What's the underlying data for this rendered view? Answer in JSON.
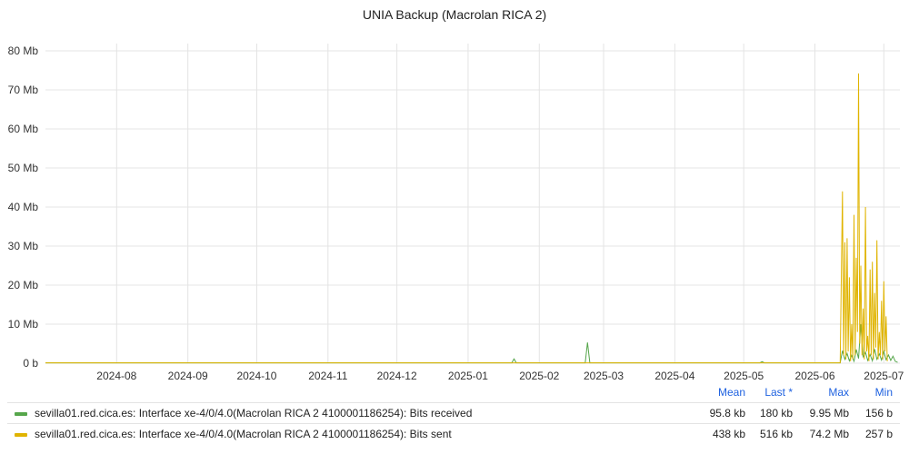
{
  "chart_data": {
    "type": "line",
    "title": "UNIA Backup (Macrolan RICA 2)",
    "y_ticks": [
      "0 b",
      "10 Mb",
      "20 Mb",
      "30 Mb",
      "40 Mb",
      "50 Mb",
      "60 Mb",
      "70 Mb",
      "80 Mb"
    ],
    "ylim": [
      0,
      80
    ],
    "x_ticks": [
      "2024-08",
      "2024-09",
      "2024-10",
      "2024-11",
      "2024-12",
      "2025-01",
      "2025-02",
      "2025-03",
      "2025-04",
      "2025-05",
      "2025-06",
      "2025-07"
    ],
    "xlim": [
      "2024-07-01",
      "2025-07-08"
    ],
    "grid": true,
    "legend_placement": "bottom",
    "series": [
      {
        "name": "sevilla01.red.cica.es: Interface xe-4/0/4.0(Macrolan RICA 2 4100001186254): Bits received",
        "color": "#56a64b",
        "points": [
          [
            "2024-07-01",
            0.1
          ],
          [
            "2025-01-20",
            0.1
          ],
          [
            "2025-01-21",
            1.1
          ],
          [
            "2025-01-22",
            0.1
          ],
          [
            "2025-02-21",
            0.1
          ],
          [
            "2025-02-22",
            5.3
          ],
          [
            "2025-02-23",
            0.1
          ],
          [
            "2025-05-08",
            0.1
          ],
          [
            "2025-05-09",
            0.4
          ],
          [
            "2025-05-10",
            0.1
          ],
          [
            "2025-06-12",
            0.1
          ],
          [
            "2025-06-13",
            3.2
          ],
          [
            "2025-06-14",
            1.0
          ],
          [
            "2025-06-15",
            2.5
          ],
          [
            "2025-06-16",
            0.6
          ],
          [
            "2025-06-17",
            2.0
          ],
          [
            "2025-06-18",
            0.5
          ],
          [
            "2025-06-19",
            3.5
          ],
          [
            "2025-06-20",
            1.2
          ],
          [
            "2025-06-21",
            9.95
          ],
          [
            "2025-06-22",
            1.5
          ],
          [
            "2025-06-23",
            2.8
          ],
          [
            "2025-06-24",
            0.7
          ],
          [
            "2025-06-25",
            2.2
          ],
          [
            "2025-06-26",
            0.6
          ],
          [
            "2025-06-27",
            3.6
          ],
          [
            "2025-06-28",
            1.0
          ],
          [
            "2025-06-29",
            2.4
          ],
          [
            "2025-06-30",
            0.8
          ],
          [
            "2025-07-01",
            3.0
          ],
          [
            "2025-07-02",
            0.9
          ],
          [
            "2025-07-03",
            2.1
          ],
          [
            "2025-07-04",
            0.7
          ],
          [
            "2025-07-05",
            1.8
          ],
          [
            "2025-07-06",
            0.5
          ],
          [
            "2025-07-07",
            0.2
          ]
        ],
        "mean": "95.8 kb",
        "last": "180 kb",
        "max": "9.95 Mb",
        "min": "156 b"
      },
      {
        "name": "sevilla01.red.cica.es: Interface xe-4/0/4.0(Macrolan RICA 2 4100001186254): Bits sent",
        "color": "#e0b400",
        "points": [
          [
            "2024-07-01",
            0.1
          ],
          [
            "2025-06-12",
            0.1
          ],
          [
            "2025-06-13",
            44.0
          ],
          [
            "2025-06-13T12",
            2.0
          ],
          [
            "2025-06-14",
            31.0
          ],
          [
            "2025-06-14T12",
            1.0
          ],
          [
            "2025-06-15",
            32.0
          ],
          [
            "2025-06-15T12",
            3.0
          ],
          [
            "2025-06-16",
            22.0
          ],
          [
            "2025-06-16T12",
            0.5
          ],
          [
            "2025-06-17",
            10.0
          ],
          [
            "2025-06-17T12",
            1.0
          ],
          [
            "2025-06-18",
            38.0
          ],
          [
            "2025-06-18T12",
            2.0
          ],
          [
            "2025-06-19",
            27.0
          ],
          [
            "2025-06-19T12",
            8.0
          ],
          [
            "2025-06-20",
            74.2
          ],
          [
            "2025-06-20T12",
            5.0
          ],
          [
            "2025-06-21",
            25.0
          ],
          [
            "2025-06-21T12",
            2.0
          ],
          [
            "2025-06-22",
            14.0
          ],
          [
            "2025-06-22T12",
            1.0
          ],
          [
            "2025-06-23",
            40.0
          ],
          [
            "2025-06-23T12",
            3.0
          ],
          [
            "2025-06-24",
            7.0
          ],
          [
            "2025-06-24T12",
            0.5
          ],
          [
            "2025-06-25",
            24.0
          ],
          [
            "2025-06-25T12",
            2.0
          ],
          [
            "2025-06-26",
            26.0
          ],
          [
            "2025-06-26T12",
            1.0
          ],
          [
            "2025-06-27",
            18.0
          ],
          [
            "2025-06-27T12",
            4.0
          ],
          [
            "2025-06-28",
            31.5
          ],
          [
            "2025-06-28T12",
            1.0
          ],
          [
            "2025-06-29",
            8.0
          ],
          [
            "2025-06-29T12",
            2.0
          ],
          [
            "2025-06-30",
            16.0
          ],
          [
            "2025-06-30T12",
            1.0
          ],
          [
            "2025-07-01",
            21.0
          ],
          [
            "2025-07-01T12",
            3.0
          ],
          [
            "2025-07-02",
            12.0
          ],
          [
            "2025-07-02T12",
            0.5
          ]
        ],
        "mean": "438 kb",
        "last": "516 kb",
        "max": "74.2 Mb",
        "min": "257 b"
      }
    ]
  },
  "legend": {
    "headers": {
      "mean": "Mean",
      "last": "Last *",
      "max": "Max",
      "min": "Min"
    }
  }
}
